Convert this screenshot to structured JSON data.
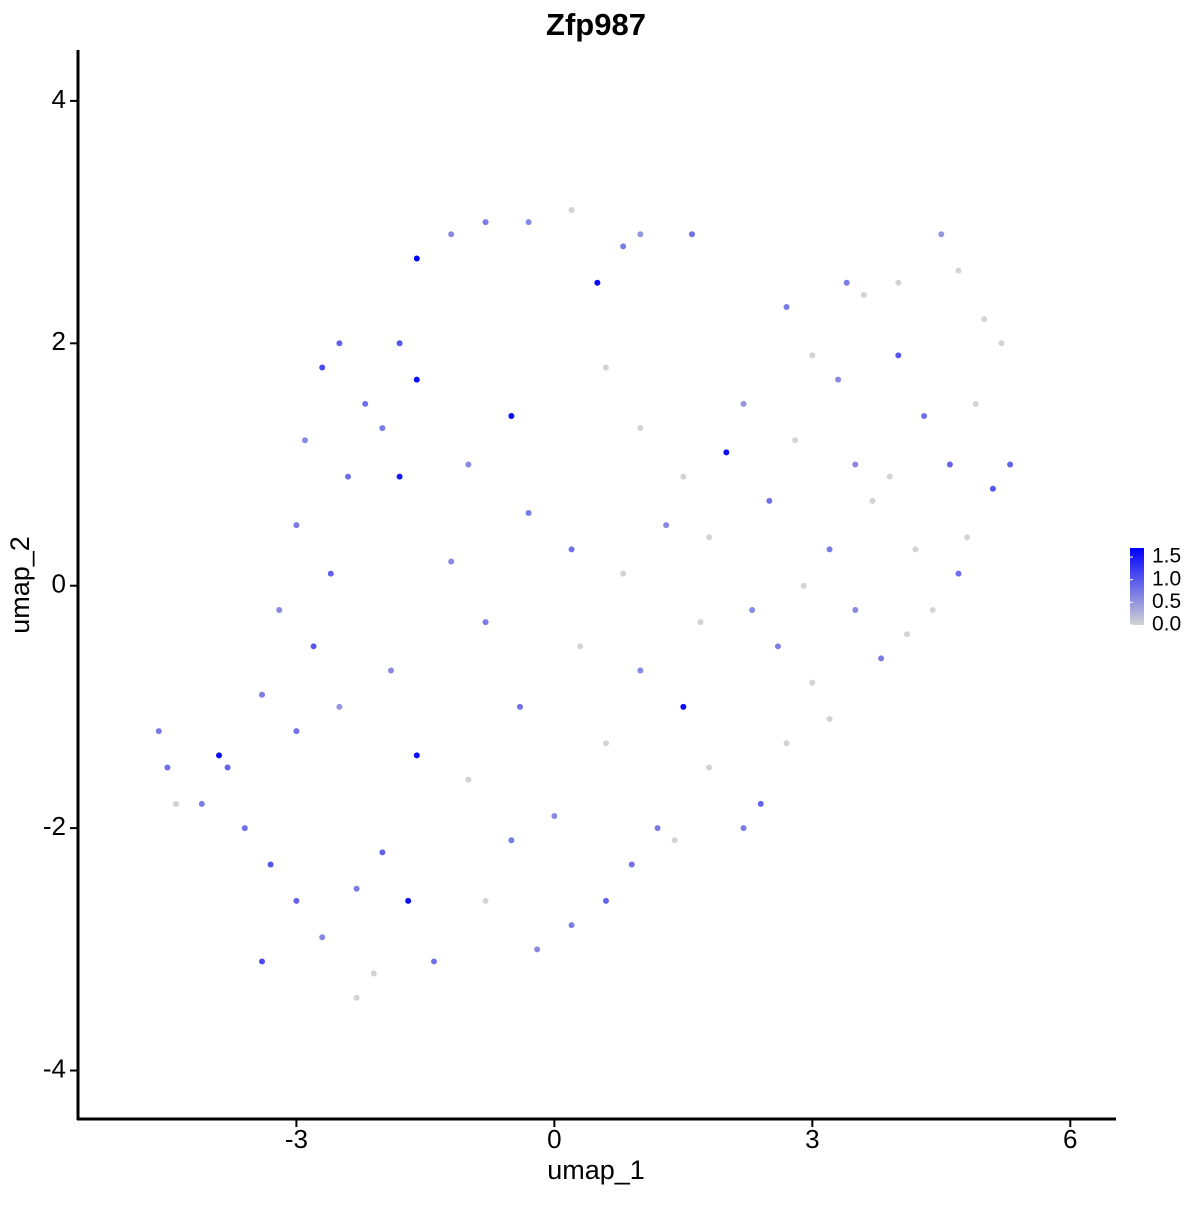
{
  "chart_data": {
    "type": "scatter",
    "title": "Zfp987",
    "x_label": "umap_1",
    "y_label": "umap_2",
    "xlim": [
      -5.54,
      6.52
    ],
    "ylim": [
      -4.4,
      4.42
    ],
    "xticks": [
      -3,
      0,
      3,
      6
    ],
    "yticks": [
      -4,
      -2,
      0,
      2,
      4
    ],
    "low_color": "#d3d3d3",
    "high_color": "#0000ff",
    "color_lim": [
      0,
      1.7
    ],
    "color_ticks": [
      {
        "value": 0,
        "label": "0.0"
      },
      0.5,
      {
        "value": 1,
        "label": "1.0"
      },
      1.5
    ],
    "x": [
      -2.5,
      -2.7,
      -2.2,
      -1.8,
      -1.6,
      -2.0,
      -2.9,
      -2.4,
      -1.8,
      -3.0,
      -2.6,
      -3.2,
      -2.8,
      -3.4,
      -3.0,
      -2.5,
      -3.8,
      -3.9,
      -4.1,
      -3.6,
      -3.3,
      -3.0,
      -3.4,
      -2.7,
      -2.3,
      -2.0,
      -1.7,
      -2.1,
      -2.3,
      -1.4,
      -4.6,
      -4.5,
      -4.4,
      -1.6,
      -1.9,
      -1.6,
      -1.2,
      -0.8,
      -0.3,
      0.2,
      0.5,
      0.8,
      1.0,
      1.6,
      -0.5,
      0.6,
      1.0,
      -1.0,
      -0.3,
      0.2,
      0.8,
      -1.2,
      -0.8,
      0.3,
      1.0,
      -0.4,
      0.6,
      1.5,
      1.8,
      1.2,
      0.6,
      0.2,
      -0.2,
      -0.8,
      -0.5,
      -1.0,
      0.0,
      0.9,
      1.4,
      2.2,
      2.4,
      2.0,
      2.5,
      2.8,
      3.0,
      2.7,
      3.3,
      3.6,
      4.0,
      4.3,
      4.5,
      4.7,
      5.0,
      5.2,
      4.9,
      4.6,
      5.1,
      5.3,
      4.8,
      4.2,
      3.7,
      3.2,
      3.5,
      3.8,
      4.4,
      4.7,
      4.1,
      3.0,
      3.2,
      2.7,
      2.3,
      1.8,
      1.5,
      2.2,
      3.5,
      4.0,
      3.9,
      3.4,
      2.9,
      2.6,
      1.7,
      1.3
    ],
    "y": [
      2.0,
      1.8,
      1.5,
      2.0,
      1.7,
      1.3,
      1.2,
      0.9,
      0.9,
      0.5,
      0.1,
      -0.2,
      -0.5,
      -0.9,
      -1.2,
      -1.0,
      -1.5,
      -1.4,
      -1.8,
      -2.0,
      -2.3,
      -2.6,
      -3.1,
      -2.9,
      -2.5,
      -2.2,
      -2.6,
      -3.2,
      -3.4,
      -3.1,
      -1.2,
      -1.5,
      -1.8,
      -1.4,
      -0.7,
      2.7,
      2.9,
      3.0,
      3.0,
      3.1,
      2.5,
      2.8,
      2.9,
      2.9,
      1.4,
      1.8,
      1.3,
      1.0,
      0.6,
      0.3,
      0.1,
      0.2,
      -0.3,
      -0.5,
      -0.7,
      -1.0,
      -1.3,
      -1.0,
      -1.5,
      -2.0,
      -2.6,
      -2.8,
      -3.0,
      -2.6,
      -2.1,
      -1.6,
      -1.9,
      -2.3,
      -2.1,
      -2.0,
      -1.8,
      1.1,
      0.7,
      1.2,
      1.9,
      2.3,
      1.7,
      2.4,
      1.9,
      1.4,
      2.9,
      2.6,
      2.2,
      2.0,
      1.5,
      1.0,
      0.8,
      1.0,
      0.4,
      0.3,
      0.7,
      0.3,
      -0.2,
      -0.6,
      -0.2,
      0.1,
      -0.4,
      -0.8,
      -1.1,
      -1.3,
      -0.2,
      0.4,
      0.9,
      1.5,
      1.0,
      2.5,
      0.9,
      2.5,
      0.0,
      -0.5,
      -0.3,
      0.5
    ],
    "values": [
      0.9,
      1.1,
      0.8,
      1.0,
      1.6,
      0.7,
      0.6,
      0.8,
      1.5,
      0.7,
      0.9,
      0.6,
      1.0,
      0.7,
      0.8,
      0.5,
      0.9,
      1.6,
      0.7,
      0.8,
      1.0,
      0.9,
      1.1,
      0.6,
      0.7,
      0.9,
      1.6,
      0,
      0,
      0.8,
      0.7,
      0.8,
      0,
      1.6,
      0.6,
      1.7,
      0.6,
      0.7,
      0.6,
      0,
      1.6,
      0.7,
      0.5,
      0.8,
      1.6,
      0,
      0,
      0.6,
      0.7,
      0.8,
      0,
      0.6,
      0.7,
      0,
      0.6,
      0.8,
      0,
      1.6,
      0,
      0.7,
      0.9,
      0.7,
      0.6,
      0,
      0.7,
      0,
      0.6,
      0.8,
      0,
      0.7,
      0.9,
      1.6,
      0.8,
      0,
      0,
      0.7,
      0.6,
      0,
      1.0,
      0.8,
      0.5,
      0,
      0,
      0,
      0,
      0.9,
      1.0,
      0.9,
      0,
      0,
      0,
      0.7,
      0.6,
      0.7,
      0,
      0.8,
      0,
      0,
      0,
      0,
      0.6,
      0,
      0,
      0.5,
      0.6,
      0,
      0,
      0.7,
      0,
      0.7,
      0,
      0.6
    ]
  }
}
